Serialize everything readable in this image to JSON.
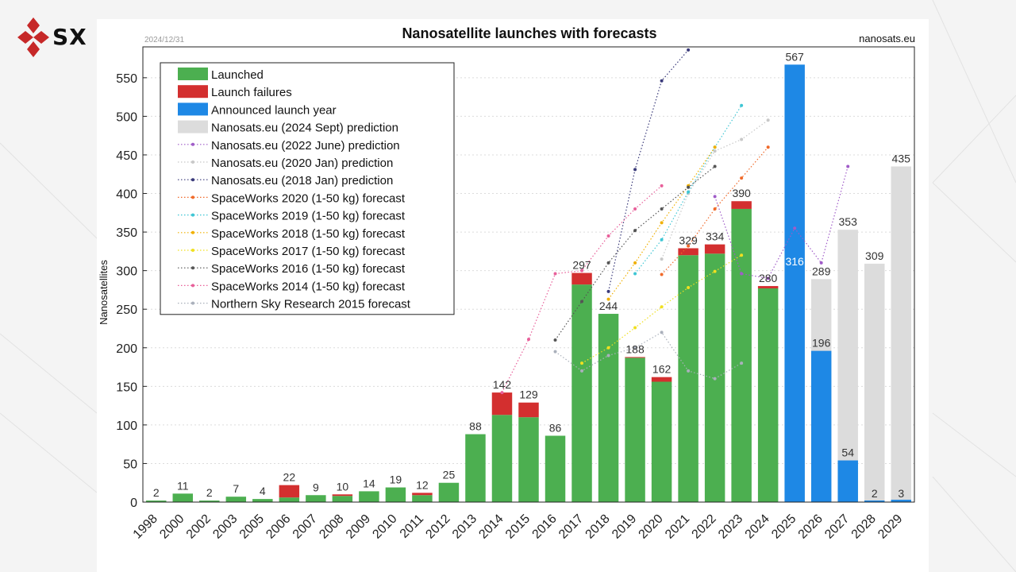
{
  "header": {
    "date": "2024/12/31",
    "source": "nanosats.eu",
    "logo_text": "SX"
  },
  "colors": {
    "launched": "#4caf50",
    "failures": "#d32f2f",
    "announced": "#1e88e5",
    "prediction2024": "#dcdcdc"
  },
  "chart_data": {
    "type": "bar",
    "title": "Nanosatellite launches with forecasts",
    "ylabel": "Nanosatellites",
    "xlabel": "",
    "ylim": [
      0,
      590
    ],
    "yticks": [
      0,
      50,
      100,
      150,
      200,
      250,
      300,
      350,
      400,
      450,
      500,
      550
    ],
    "grid": true,
    "legend_position": "top-left",
    "categories": [
      "1998",
      "2000",
      "2002",
      "2003",
      "2005",
      "2006",
      "2007",
      "2008",
      "2009",
      "2010",
      "2011",
      "2012",
      "2013",
      "2014",
      "2015",
      "2016",
      "2017",
      "2018",
      "2019",
      "2020",
      "2021",
      "2022",
      "2023",
      "2024",
      "2025",
      "2026",
      "2027",
      "2028",
      "2029"
    ],
    "totals_labels": [
      "2",
      "11",
      "2",
      "7",
      "4",
      "22",
      "9",
      "10",
      "14",
      "19",
      "12",
      "25",
      "88",
      "142",
      "129",
      "86",
      "297",
      "244",
      "188",
      "162",
      "329",
      "334",
      "390",
      "280",
      "567",
      "289",
      "353",
      "309",
      "435"
    ],
    "series": [
      {
        "name": "Launched",
        "color": "#4caf50",
        "values": [
          2,
          11,
          2,
          7,
          4,
          6,
          9,
          8,
          14,
          19,
          9,
          25,
          88,
          113,
          110,
          86,
          282,
          244,
          187,
          156,
          320,
          322,
          380,
          277,
          0,
          0,
          0,
          0,
          0
        ]
      },
      {
        "name": "Launch failures",
        "color": "#d32f2f",
        "values": [
          0,
          0,
          0,
          0,
          0,
          16,
          0,
          2,
          0,
          0,
          3,
          0,
          0,
          29,
          19,
          0,
          15,
          0,
          1,
          6,
          9,
          12,
          10,
          3,
          0,
          0,
          0,
          0,
          0
        ]
      },
      {
        "name": "Announced launch year",
        "color": "#1e88e5",
        "values": [
          0,
          0,
          0,
          0,
          0,
          0,
          0,
          0,
          0,
          0,
          0,
          0,
          0,
          0,
          0,
          0,
          0,
          0,
          0,
          0,
          0,
          0,
          0,
          0,
          567,
          196,
          54,
          2,
          3
        ]
      },
      {
        "name": "Nanosats.eu (2024 Sept) prediction",
        "color": "#dcdcdc",
        "values": [
          null,
          null,
          null,
          null,
          null,
          null,
          null,
          null,
          null,
          null,
          null,
          null,
          null,
          null,
          null,
          null,
          null,
          null,
          null,
          null,
          null,
          null,
          null,
          null,
          316,
          289,
          353,
          309,
          435
        ]
      }
    ],
    "extra_labels": [
      {
        "category": "2025",
        "text": "316"
      },
      {
        "category": "2026",
        "text": "196"
      },
      {
        "category": "2027",
        "text": "54"
      },
      {
        "category": "2028",
        "text": "2"
      },
      {
        "category": "2029",
        "text": "3"
      }
    ],
    "forecast_lines": [
      {
        "name": "Nanosats.eu (2022 June) prediction",
        "color": "#a05cc8",
        "points": [
          [
            "2022",
            396
          ],
          [
            "2023",
            296
          ],
          [
            "2024",
            290
          ],
          [
            "2025",
            355
          ],
          [
            "2026",
            310
          ],
          [
            "2027",
            435
          ]
        ]
      },
      {
        "name": "Nanosats.eu (2020 Jan) prediction",
        "color": "#c8c8c8",
        "points": [
          [
            "2020",
            315
          ],
          [
            "2021",
            400
          ],
          [
            "2022",
            455
          ],
          [
            "2023",
            470
          ],
          [
            "2024",
            495
          ]
        ]
      },
      {
        "name": "Nanosats.eu (2018 Jan) prediction",
        "color": "#3a3a7a",
        "points": [
          [
            "2018",
            273
          ],
          [
            "2019",
            431
          ],
          [
            "2020",
            546
          ],
          [
            "2021",
            586
          ]
        ]
      },
      {
        "name": "SpaceWorks 2020 (1-50 kg) forecast",
        "color": "#f06a2a",
        "points": [
          [
            "2020",
            295
          ],
          [
            "2021",
            332
          ],
          [
            "2022",
            380
          ],
          [
            "2023",
            420
          ],
          [
            "2024",
            460
          ]
        ]
      },
      {
        "name": "SpaceWorks 2019 (1-50 kg) forecast",
        "color": "#3ec6d4",
        "points": [
          [
            "2019",
            296
          ],
          [
            "2020",
            340
          ],
          [
            "2021",
            402
          ],
          [
            "2022",
            460
          ],
          [
            "2023",
            514
          ]
        ]
      },
      {
        "name": "SpaceWorks 2018 (1-50 kg) forecast",
        "color": "#f0b000",
        "points": [
          [
            "2018",
            263
          ],
          [
            "2019",
            310
          ],
          [
            "2020",
            362
          ],
          [
            "2021",
            410
          ],
          [
            "2022",
            460
          ]
        ]
      },
      {
        "name": "SpaceWorks 2017 (1-50 kg) forecast",
        "color": "#f0e020",
        "points": [
          [
            "2017",
            180
          ],
          [
            "2018",
            200
          ],
          [
            "2019",
            226
          ],
          [
            "2020",
            253
          ],
          [
            "2021",
            278
          ],
          [
            "2022",
            299
          ],
          [
            "2023",
            320
          ]
        ]
      },
      {
        "name": "SpaceWorks 2016 (1-50 kg) forecast",
        "color": "#555555",
        "points": [
          [
            "2016",
            210
          ],
          [
            "2017",
            260
          ],
          [
            "2018",
            310
          ],
          [
            "2019",
            352
          ],
          [
            "2020",
            380
          ],
          [
            "2021",
            408
          ],
          [
            "2022",
            435
          ]
        ]
      },
      {
        "name": "SpaceWorks 2014 (1-50 kg) forecast",
        "color": "#e8609a",
        "points": [
          [
            "2014",
            142
          ],
          [
            "2015",
            211
          ],
          [
            "2016",
            296
          ],
          [
            "2017",
            300
          ],
          [
            "2018",
            345
          ],
          [
            "2019",
            380
          ],
          [
            "2020",
            410
          ]
        ]
      },
      {
        "name": "Northern Sky Research 2015 forecast",
        "color": "#aab0bb",
        "points": [
          [
            "2016",
            195
          ],
          [
            "2017",
            170
          ],
          [
            "2018",
            190
          ],
          [
            "2019",
            200
          ],
          [
            "2020",
            220
          ],
          [
            "2021",
            170
          ],
          [
            "2022",
            160
          ],
          [
            "2023",
            180
          ]
        ]
      }
    ]
  }
}
